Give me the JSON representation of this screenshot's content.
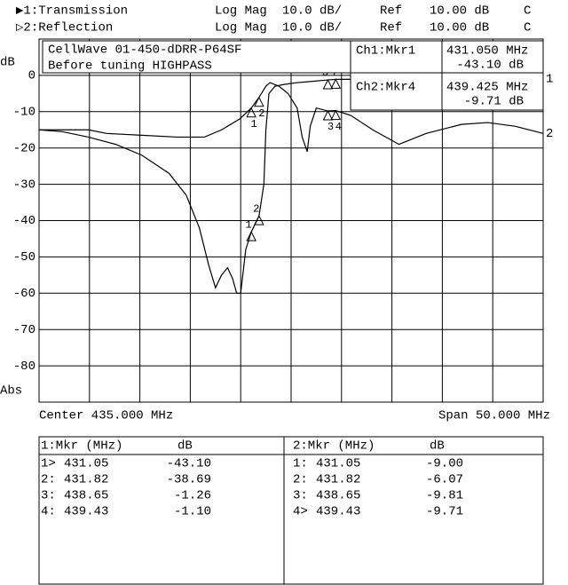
{
  "header": {
    "rows": [
      [
        "Log Mag",
        "10.0 dB/",
        "Ref",
        "10.00 dB",
        "C"
      ],
      [
        "Log Mag",
        "10.0 dB/",
        "Ref",
        "10.00 dB",
        "C"
      ]
    ]
  },
  "chart_data": {
    "type": "line",
    "y_label": "dB",
    "y_mode": "Abs",
    "x_left_label": "Center 435.000 MHz",
    "x_right_label": "Span 50.000 MHz",
    "annotation": [
      "CellWave 01-450-dDRR-P64SF",
      "Before tuning HIGHPASS"
    ],
    "readouts": [
      [
        "Ch1:Mkr1",
        "431.050 MHz",
        "-43.10 dB"
      ],
      [
        "Ch2:Mkr4",
        "439.425 MHz",
        "-9.71 dB"
      ]
    ],
    "xlim": [
      410,
      460
    ],
    "ylim": [
      -90,
      10
    ],
    "yticks": [
      0,
      -10,
      -20,
      -30,
      -40,
      -50,
      -60,
      -70,
      -80
    ],
    "grid": true,
    "markers": {
      "labels": [
        "1",
        "2",
        "3",
        "4"
      ],
      "x": [
        431.05,
        431.82,
        438.65,
        439.43
      ]
    },
    "series": [
      {
        "name": "▶1:Transmission",
        "end_label": "1",
        "color": "#000000",
        "x": [
          410,
          412.3,
          414.9,
          417.6,
          420.2,
          422.9,
          424.6,
          425.9,
          426.8,
          427.5,
          428.1,
          428.7,
          429.2,
          429.6,
          430,
          430.5,
          431.05,
          431.6,
          431.82,
          432.3,
          432.5,
          432.8,
          433.4,
          434.3,
          435.6,
          436.5,
          438.65,
          439.43,
          445.7,
          453.7,
          460
        ],
        "values": [
          -15,
          -15.5,
          -17,
          -19,
          -22,
          -27,
          -33,
          -42,
          -52,
          -58.5,
          -55,
          -53,
          -56,
          -60,
          -60,
          -48,
          -43.1,
          -40,
          -38.69,
          -30,
          -15,
          -5,
          -3,
          -2.5,
          -2,
          -1.8,
          -1.26,
          -1.1,
          -1,
          -1,
          -1
        ],
        "marker_values": [
          -43.1,
          -38.69,
          -1.26,
          -1.1
        ]
      },
      {
        "name": "▷2:Reflection",
        "end_label": "2",
        "color": "#000000",
        "x": [
          410,
          413.2,
          414.9,
          416.7,
          420.2,
          423.7,
          426.4,
          428.1,
          429.9,
          431.05,
          431.82,
          432.5,
          432.9,
          433.8,
          434.7,
          435.6,
          436.1,
          436.6,
          436.9,
          437.5,
          438.65,
          439.43,
          440.9,
          443.1,
          445.7,
          448.4,
          451.9,
          454.5,
          457.2,
          460
        ],
        "values": [
          -15,
          -15,
          -15,
          -16,
          -16.5,
          -17,
          -17,
          -15,
          -12,
          -9,
          -6.07,
          -3,
          -2,
          -3,
          -5,
          -9,
          -17,
          -21,
          -14,
          -9,
          -9.81,
          -9.71,
          -11,
          -15,
          -19,
          -16,
          -13.5,
          -13,
          -14,
          -16
        ],
        "marker_values": [
          -9,
          -6.07,
          -9.81,
          -9.71
        ]
      }
    ]
  },
  "marker_tables": [
    {
      "header": [
        "1:Mkr (MHz)",
        "dB"
      ],
      "rows": [
        [
          "1>",
          "431.05",
          "-43.10"
        ],
        [
          "2:",
          "431.82",
          "-38.69"
        ],
        [
          "3:",
          "438.65",
          "-1.26"
        ],
        [
          "4:",
          "439.43",
          "-1.10"
        ]
      ]
    },
    {
      "header": [
        "2:Mkr (MHz)",
        "dB"
      ],
      "rows": [
        [
          "1:",
          "431.05",
          "-9.00"
        ],
        [
          "2:",
          "431.82",
          "-6.07"
        ],
        [
          "3:",
          "438.65",
          "-9.81"
        ],
        [
          "4>",
          "439.43",
          "-9.71"
        ]
      ]
    }
  ]
}
